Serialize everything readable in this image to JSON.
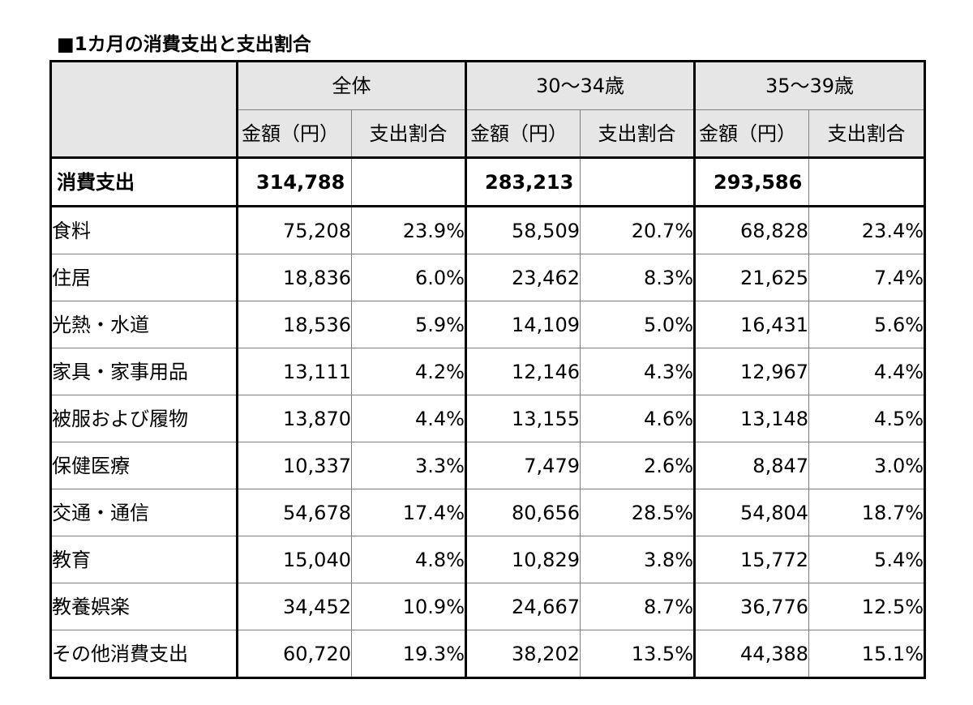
{
  "title": "■1カ月の消費支出と支出割合",
  "groups": [
    {
      "label": "全体",
      "amount_label": "金額（円）",
      "ratio_label": "支出割合"
    },
    {
      "label": "30〜34歳",
      "amount_label": "金額（円）",
      "ratio_label": "支出割合"
    },
    {
      "label": "35〜39歳",
      "amount_label": "金額（円）",
      "ratio_label": "支出割合"
    }
  ],
  "total": {
    "label": "消費支出",
    "values": [
      "314,788",
      "283,213",
      "293,586"
    ]
  },
  "rows": [
    {
      "category": "食料",
      "cells": [
        "75,208",
        "23.9%",
        "58,509",
        "20.7%",
        "68,828",
        "23.4%"
      ]
    },
    {
      "category": "住居",
      "cells": [
        "18,836",
        "6.0%",
        "23,462",
        "8.3%",
        "21,625",
        "7.4%"
      ]
    },
    {
      "category": "光熱・水道",
      "cells": [
        "18,536",
        "5.9%",
        "14,109",
        "5.0%",
        "16,431",
        "5.6%"
      ]
    },
    {
      "category": "家具・家事用品",
      "cells": [
        "13,111",
        "4.2%",
        "12,146",
        "4.3%",
        "12,967",
        "4.4%"
      ]
    },
    {
      "category": "被服および履物",
      "cells": [
        "13,870",
        "4.4%",
        "13,155",
        "4.6%",
        "13,148",
        "4.5%"
      ]
    },
    {
      "category": "保健医療",
      "cells": [
        "10,337",
        "3.3%",
        "7,479",
        "2.6%",
        "8,847",
        "3.0%"
      ]
    },
    {
      "category": "交通・通信",
      "cells": [
        "54,678",
        "17.4%",
        "80,656",
        "28.5%",
        "54,804",
        "18.7%"
      ]
    },
    {
      "category": "教育",
      "cells": [
        "15,040",
        "4.8%",
        "10,829",
        "3.8%",
        "15,772",
        "5.4%"
      ]
    },
    {
      "category": "教養娯楽",
      "cells": [
        "34,452",
        "10.9%",
        "24,667",
        "8.7%",
        "36,776",
        "12.5%"
      ]
    },
    {
      "category": "その他消費支出",
      "cells": [
        "60,720",
        "19.3%",
        "38,202",
        "13.5%",
        "44,388",
        "15.1%"
      ]
    }
  ]
}
